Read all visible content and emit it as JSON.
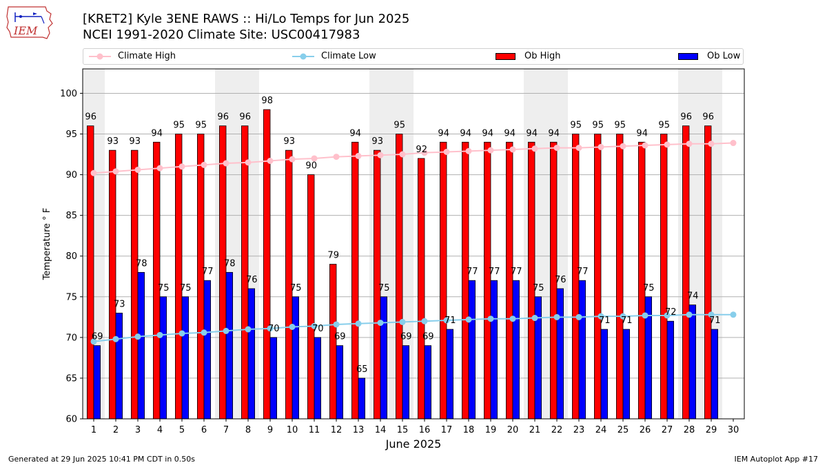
{
  "header": {
    "logo_text": "IEM",
    "title": "[KRET2] Kyle 3ENE RAWS :: Hi/Lo Temps for Jun 2025",
    "subtitle": "NCEI 1991-2020 Climate Site: USC00417983"
  },
  "legend": {
    "climate_high": "Climate High",
    "climate_low": "Climate Low",
    "ob_high": "Ob High",
    "ob_low": "Ob Low"
  },
  "footer": {
    "generated": "Generated at 29 Jun 2025 10:41 PM CDT in 0.50s",
    "app": "IEM Autoplot App #17"
  },
  "colors": {
    "ob_high": "#ff0000",
    "ob_low": "#0000ff",
    "climate_high": "#ffc0cb",
    "climate_low": "#87ceeb",
    "weekend_shade": "#eeeeee",
    "grid": "#b0b0b0"
  },
  "chart_data": {
    "type": "bar",
    "title": "[KRET2] Kyle 3ENE RAWS :: Hi/Lo Temps for Jun 2025",
    "xlabel": "June 2025",
    "ylabel": "Temperature ° F",
    "xlim": [
      0.5,
      30.5
    ],
    "ylim": [
      60,
      103
    ],
    "y_ticks": [
      60,
      65,
      70,
      75,
      80,
      85,
      90,
      95,
      100
    ],
    "categories": [
      1,
      2,
      3,
      4,
      5,
      6,
      7,
      8,
      9,
      10,
      11,
      12,
      13,
      14,
      15,
      16,
      17,
      18,
      19,
      20,
      21,
      22,
      23,
      24,
      25,
      26,
      27,
      28,
      29,
      30
    ],
    "shaded_days": [
      1,
      7,
      8,
      14,
      15,
      21,
      22,
      28,
      29
    ],
    "grid": true,
    "legend_position": "top",
    "series": [
      {
        "name": "Ob High",
        "kind": "bar",
        "values": [
          96,
          93,
          93,
          94,
          95,
          95,
          96,
          96,
          98,
          93,
          90,
          79,
          94,
          93,
          95,
          92,
          94,
          94,
          94,
          94,
          94,
          94,
          95,
          95,
          95,
          94,
          95,
          96,
          96,
          null
        ]
      },
      {
        "name": "Ob Low",
        "kind": "bar",
        "values": [
          69,
          73,
          78,
          75,
          75,
          77,
          78,
          76,
          70,
          75,
          70,
          69,
          65,
          75,
          69,
          69,
          71,
          77,
          77,
          77,
          75,
          76,
          77,
          71,
          71,
          75,
          72,
          74,
          71,
          null
        ]
      },
      {
        "name": "Climate High",
        "kind": "line",
        "values": [
          90.2,
          90.4,
          90.6,
          90.8,
          91.0,
          91.2,
          91.4,
          91.5,
          91.7,
          91.9,
          92.0,
          92.2,
          92.3,
          92.4,
          92.5,
          92.7,
          92.8,
          92.9,
          93.0,
          93.1,
          93.2,
          93.3,
          93.3,
          93.4,
          93.5,
          93.6,
          93.7,
          93.8,
          93.8,
          93.9
        ]
      },
      {
        "name": "Climate Low",
        "kind": "line",
        "values": [
          69.5,
          69.8,
          70.1,
          70.3,
          70.5,
          70.6,
          70.8,
          71.0,
          71.1,
          71.3,
          71.4,
          71.6,
          71.7,
          71.8,
          71.9,
          72.0,
          72.1,
          72.2,
          72.3,
          72.3,
          72.4,
          72.5,
          72.5,
          72.6,
          72.6,
          72.7,
          72.7,
          72.8,
          72.8,
          72.8
        ]
      }
    ]
  }
}
